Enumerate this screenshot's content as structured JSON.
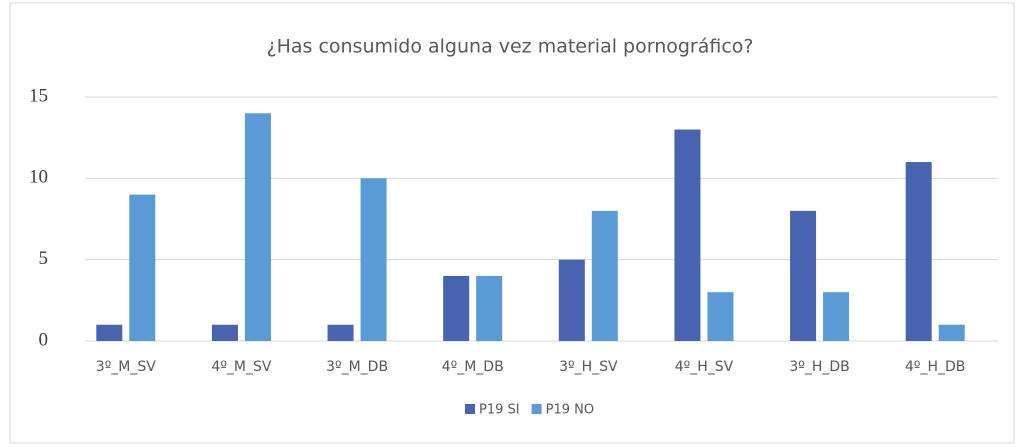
{
  "chart_data": {
    "type": "bar",
    "title": "¿Has consumido alguna vez material pornográfico?",
    "categories": [
      "3º_M_SV",
      "4º_M_SV",
      "3º_M_DB",
      "4º_M_DB",
      "3º_H_SV",
      "4º_H_SV",
      "3º_H_DB",
      "4º_H_DB"
    ],
    "series": [
      {
        "name": "P19 SI",
        "color": "#4864b0",
        "values": [
          1,
          1,
          1,
          4,
          5,
          13,
          8,
          11
        ]
      },
      {
        "name": "P19 NO",
        "color": "#5b9bd5",
        "values": [
          9,
          14,
          10,
          4,
          8,
          3,
          3,
          1
        ]
      }
    ],
    "ylim": [
      0,
      15
    ],
    "yticks": [
      0,
      5,
      10,
      15
    ],
    "grid": true,
    "legend": "bottom"
  }
}
